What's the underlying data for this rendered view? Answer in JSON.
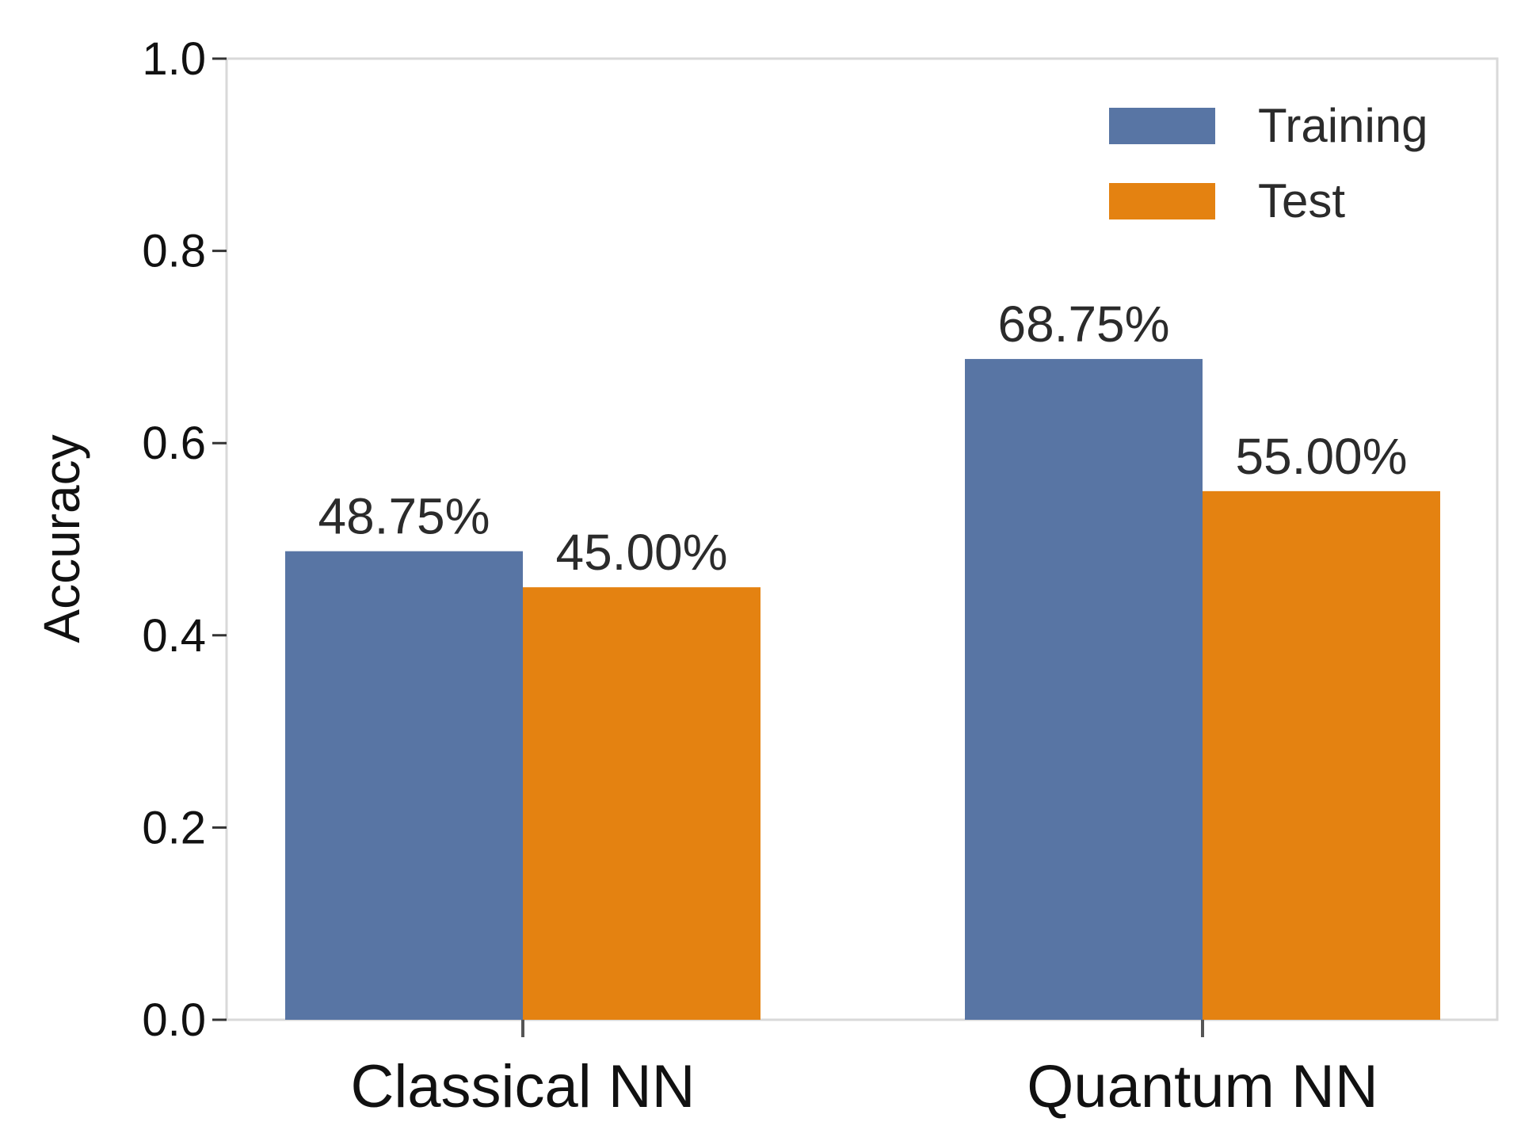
{
  "chart_data": {
    "type": "bar",
    "categories": [
      "Classical NN",
      "Quantum NN"
    ],
    "series": [
      {
        "name": "Training",
        "values": [
          0.4875,
          0.6875
        ],
        "labels": [
          "48.75%",
          "68.75%"
        ],
        "color": "#5875a4"
      },
      {
        "name": "Test",
        "values": [
          0.45,
          0.55
        ],
        "labels": [
          "45.00%",
          "55.00%"
        ],
        "color": "#e48211"
      }
    ],
    "title": "",
    "xlabel": "",
    "ylabel": "Accuracy",
    "ylim": [
      0,
      1.0
    ],
    "yticks": [
      0.0,
      0.2,
      0.4,
      0.6,
      0.8,
      1.0
    ],
    "ytick_labels": [
      "0.0",
      "0.2",
      "0.4",
      "0.6",
      "0.8",
      "1.0"
    ],
    "grid": false,
    "legend": "top-right"
  }
}
